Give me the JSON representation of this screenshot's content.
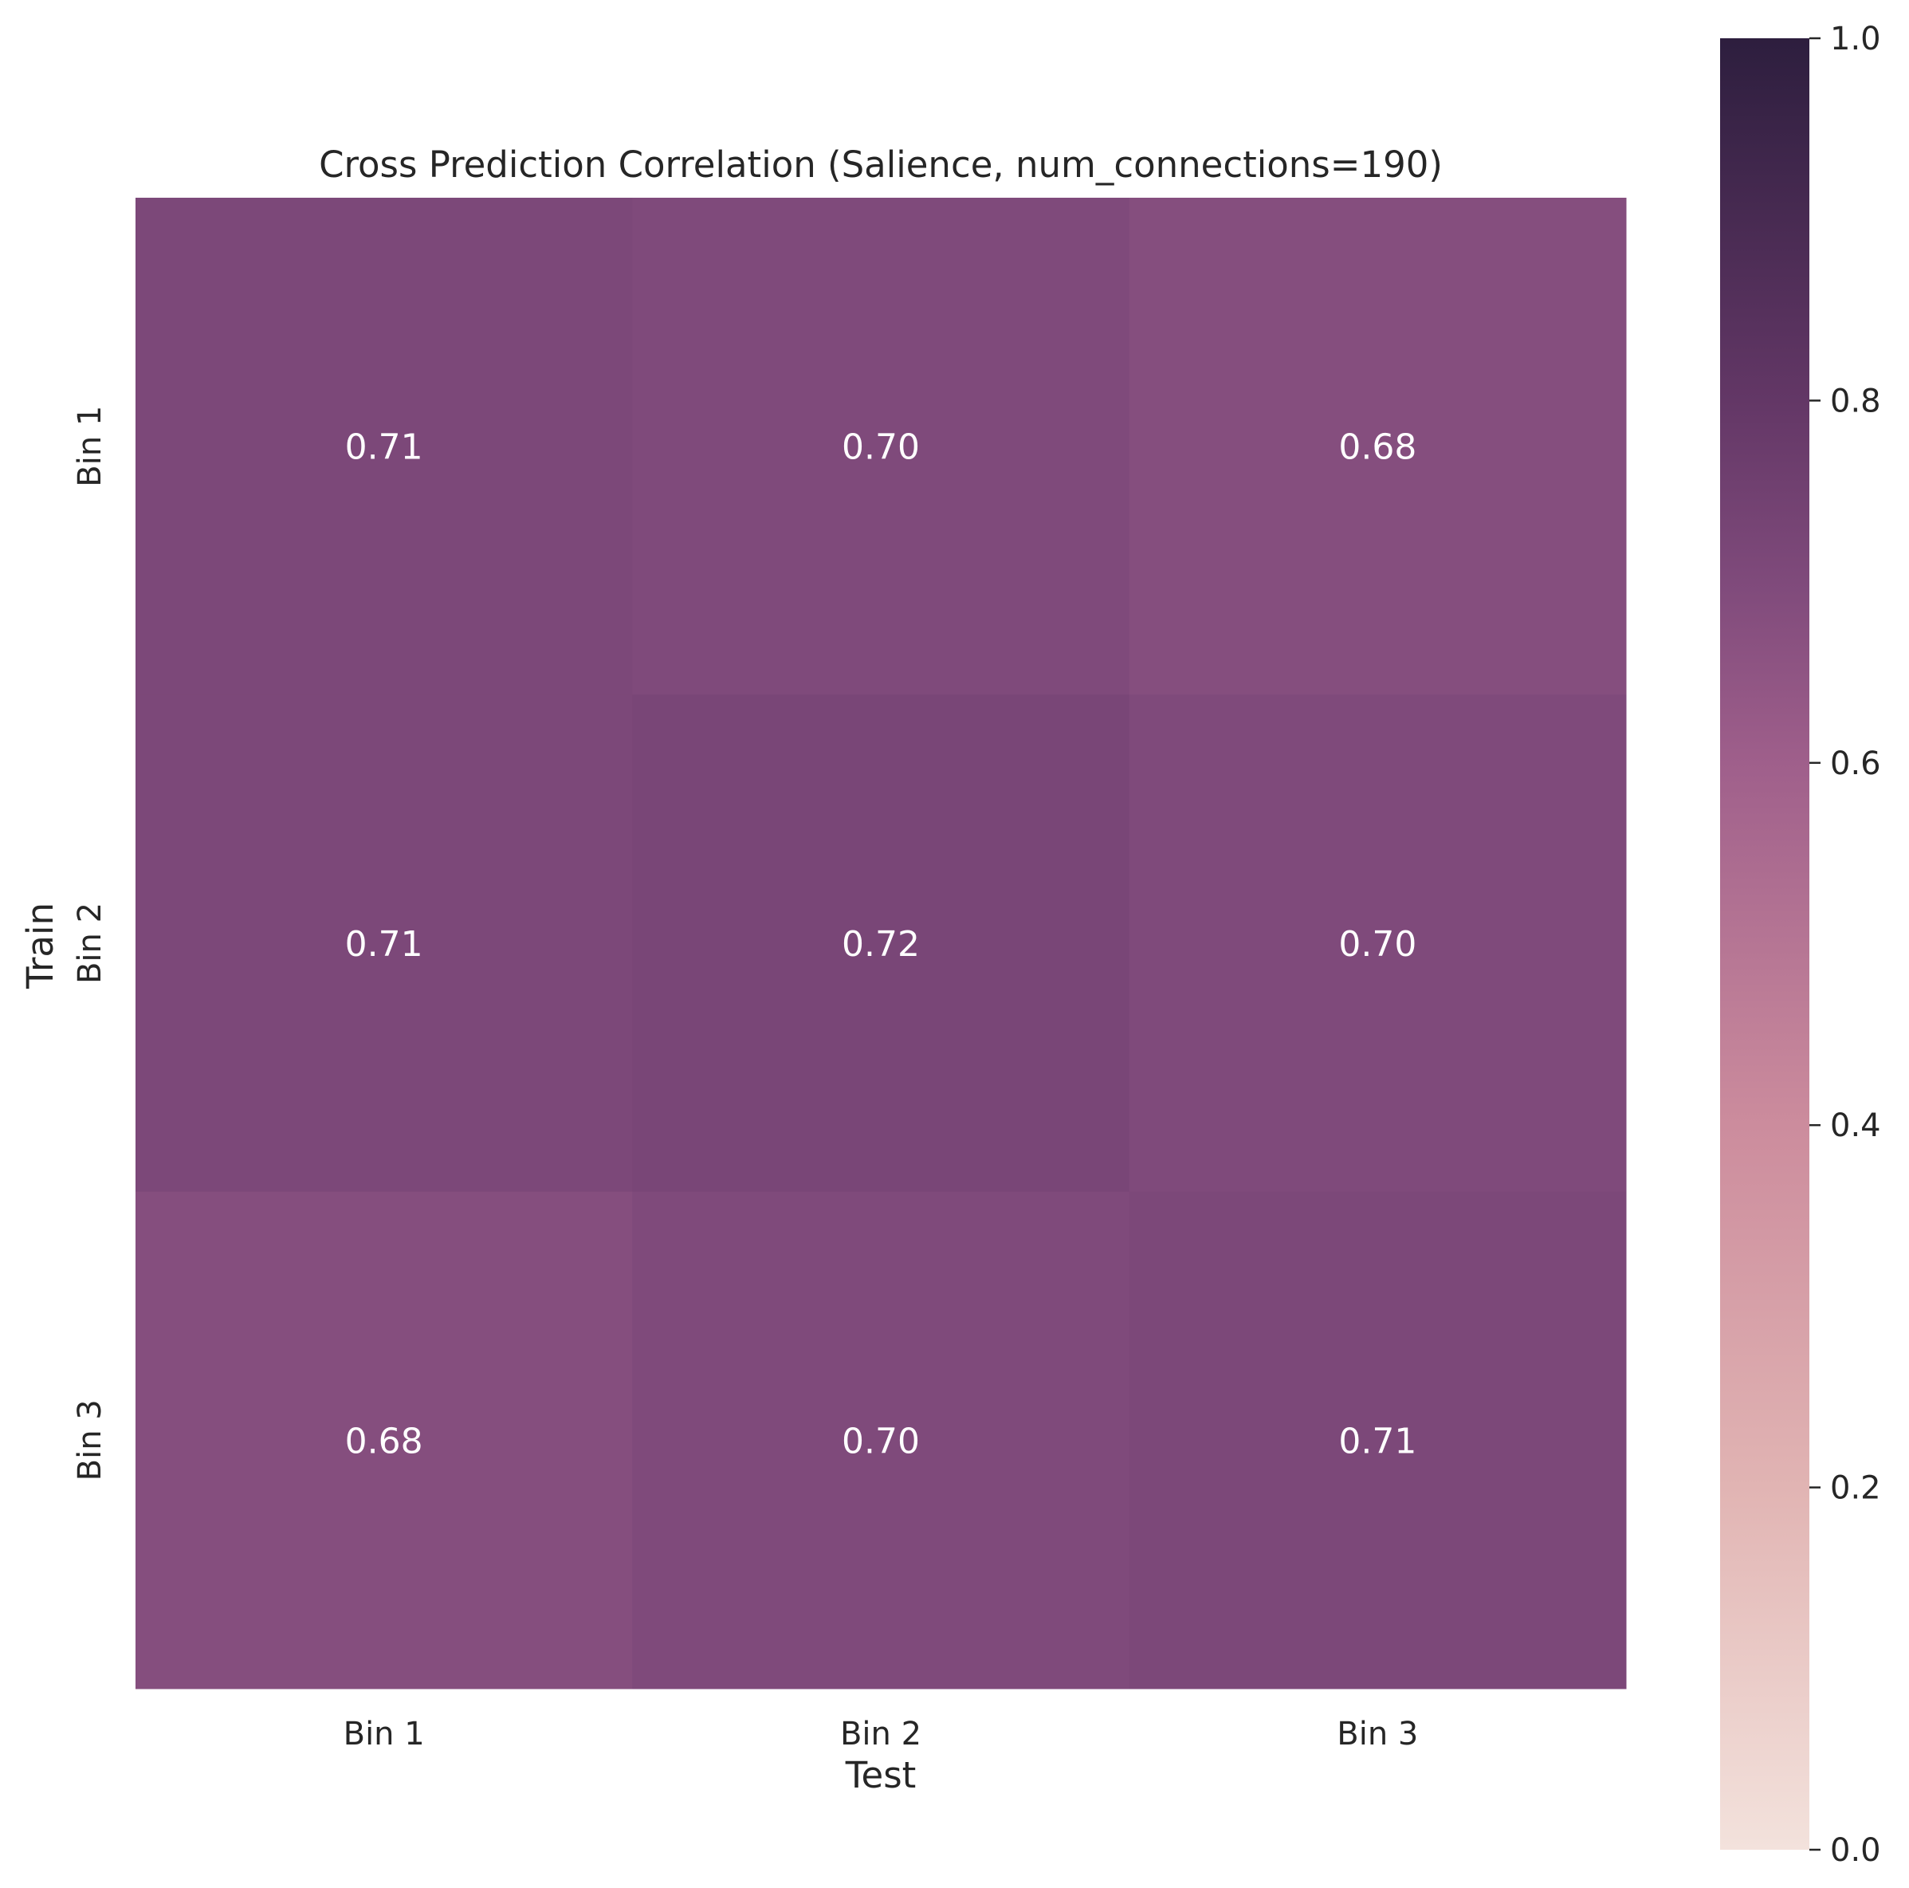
{
  "chart_data": {
    "type": "heatmap",
    "title": "Cross Prediction Correlation (Salience, num_connections=190)",
    "xlabel": "Test",
    "ylabel": "Train",
    "x_categories": [
      "Bin 1",
      "Bin 2",
      "Bin 3"
    ],
    "y_categories": [
      "Bin 1",
      "Bin 2",
      "Bin 3"
    ],
    "values": [
      [
        0.71,
        0.7,
        0.68
      ],
      [
        0.71,
        0.72,
        0.7
      ],
      [
        0.68,
        0.7,
        0.71
      ]
    ],
    "cell_labels": [
      [
        "0.71",
        "0.70",
        "0.68"
      ],
      [
        "0.71",
        "0.72",
        "0.70"
      ],
      [
        "0.68",
        "0.70",
        "0.71"
      ]
    ],
    "vmin": 0.0,
    "vmax": 1.0,
    "colorbar": {
      "ticks": [
        0.0,
        0.2,
        0.4,
        0.6,
        0.8,
        1.0
      ],
      "tick_labels": [
        "0.0",
        "0.2",
        "0.4",
        "0.6",
        "0.8",
        "1.0"
      ]
    },
    "colormap_stops": [
      {
        "v": 0.0,
        "color": "#f3e2dc"
      },
      {
        "v": 0.2,
        "color": "#e1b4b3"
      },
      {
        "v": 0.4,
        "color": "#cc8c9d"
      },
      {
        "v": 0.6,
        "color": "#9f5f8b"
      },
      {
        "v": 0.7,
        "color": "#7f4a7b"
      },
      {
        "v": 0.8,
        "color": "#633766"
      },
      {
        "v": 1.0,
        "color": "#2d1e3e"
      }
    ],
    "annotation_color": "#ffffff",
    "text_color": "#262626"
  }
}
